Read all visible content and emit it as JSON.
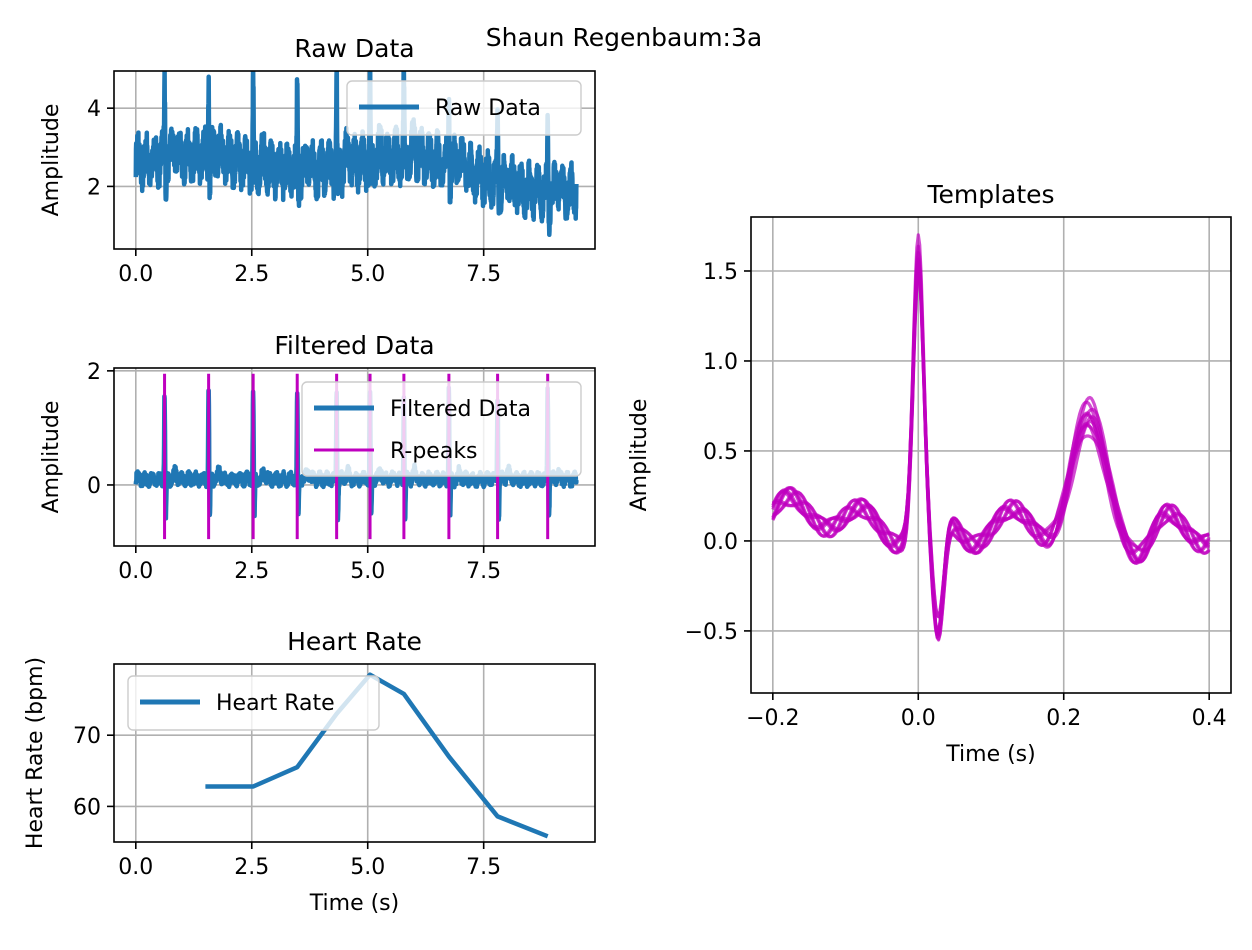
{
  "figure": {
    "suptitle": "Shaun Regenbaum:3a"
  },
  "colors": {
    "blue": "#1f77b4",
    "magenta": "#bf00bf"
  },
  "chart_data": [
    {
      "id": "raw",
      "type": "line",
      "title": "Raw Data",
      "xlabel": "",
      "ylabel": "Amplitude",
      "xlim": [
        -0.47,
        9.9
      ],
      "ylim": [
        0.4,
        4.95
      ],
      "xticks": [
        0.0,
        2.5,
        5.0,
        7.5
      ],
      "xtick_labels": [
        "0.0",
        "2.5",
        "5.0",
        "7.5"
      ],
      "yticks": [
        2,
        4
      ],
      "ytick_labels": [
        "2",
        "4"
      ],
      "grid": true,
      "legend": {
        "position": "upper right",
        "entries": [
          {
            "label": "Raw Data",
            "color": "#1f77b4",
            "kind": "line"
          }
        ]
      },
      "series": [
        {
          "name": "Raw Data",
          "color": "#1f77b4",
          "duration": 9.5,
          "beats": [
            0.62,
            1.57,
            2.53,
            3.48,
            4.33,
            5.05,
            5.78,
            6.75,
            7.8,
            8.88
          ],
          "peak": 4.6,
          "trough": 1.6,
          "baseline_start": 2.6,
          "baseline_end": 1.9,
          "noise": 0.45
        }
      ]
    },
    {
      "id": "filtered",
      "type": "line",
      "title": "Filtered Data",
      "xlabel": "",
      "ylabel": "Amplitude",
      "xlim": [
        -0.47,
        9.9
      ],
      "ylim": [
        -1.07,
        2.05
      ],
      "xticks": [
        0.0,
        2.5,
        5.0,
        7.5
      ],
      "xtick_labels": [
        "0.0",
        "2.5",
        "5.0",
        "7.5"
      ],
      "yticks": [
        0,
        2
      ],
      "ytick_labels": [
        "0",
        "2"
      ],
      "grid": true,
      "legend": {
        "position": "upper right",
        "entries": [
          {
            "label": "Filtered Data",
            "color": "#1f77b4",
            "kind": "line"
          },
          {
            "label": "R-peaks",
            "color": "#bf00bf",
            "kind": "vline"
          }
        ]
      },
      "series": [
        {
          "name": "Filtered Data",
          "color": "#1f77b4",
          "duration": 9.5,
          "peak": 1.55,
          "trough": -0.65,
          "noise": 0.09
        },
        {
          "name": "R-peaks",
          "color": "#bf00bf",
          "x": [
            0.62,
            1.57,
            2.53,
            3.48,
            4.33,
            5.05,
            5.78,
            6.75,
            7.8,
            8.88
          ],
          "ymin": -0.95,
          "ymax": 1.95
        }
      ]
    },
    {
      "id": "hr",
      "type": "line",
      "title": "Heart Rate",
      "xlabel": "Time (s)",
      "ylabel": "Heart Rate (bpm)",
      "xlim": [
        -0.47,
        9.9
      ],
      "ylim": [
        55,
        80
      ],
      "xticks": [
        0.0,
        2.5,
        5.0,
        7.5
      ],
      "xtick_labels": [
        "0.0",
        "2.5",
        "5.0",
        "7.5"
      ],
      "yticks": [
        60,
        70
      ],
      "ytick_labels": [
        "60",
        "70"
      ],
      "grid": true,
      "legend": {
        "position": "upper left",
        "entries": [
          {
            "label": "Heart Rate",
            "color": "#1f77b4",
            "kind": "line"
          }
        ]
      },
      "series": [
        {
          "name": "Heart Rate",
          "color": "#1f77b4",
          "x": [
            1.5,
            2.53,
            3.48,
            4.33,
            5.05,
            5.78,
            6.75,
            7.8,
            8.88
          ],
          "y": [
            62.8,
            62.8,
            65.5,
            73.0,
            78.5,
            75.8,
            67.0,
            58.6,
            55.8
          ]
        }
      ]
    },
    {
      "id": "templates",
      "type": "line",
      "title": "Templates",
      "xlabel": "Time (s)",
      "ylabel": "Amplitude",
      "xlim": [
        -0.23,
        0.43
      ],
      "ylim": [
        -0.845,
        1.8
      ],
      "xticks": [
        -0.2,
        0.0,
        0.2,
        0.4
      ],
      "xtick_labels": [
        "−0.2",
        "0.0",
        "0.2",
        "0.4"
      ],
      "yticks": [
        -0.5,
        0.0,
        0.5,
        1.0,
        1.5
      ],
      "ytick_labels": [
        "−0.5",
        "0.0",
        "0.5",
        "1.0",
        "1.5"
      ],
      "grid": true,
      "legend": null,
      "series": [
        {
          "name": "",
          "color": "#bf00bf",
          "opacity": 0.7,
          "count": 10,
          "x_range": [
            -0.2,
            0.4
          ],
          "r_peak_amp": 1.55,
          "s_trough_amp": -0.62,
          "t_wave_amp": 0.52,
          "t_wave_center": 0.235
        }
      ]
    }
  ]
}
